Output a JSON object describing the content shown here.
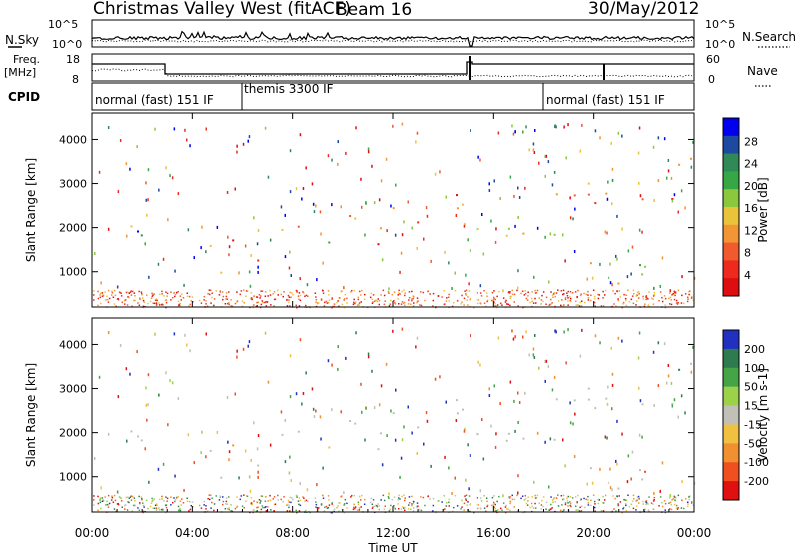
{
  "header": {
    "station": "Christmas Valley West (fitACF)",
    "beam": "Beam 16",
    "date": "30/May/2012"
  },
  "left_labels": {
    "nsky": "N.Sky",
    "freq_line1": "Freq.",
    "freq_line2": "[MHz]",
    "cpid": "CPID"
  },
  "right_labels": {
    "nsearch": "N.Search",
    "nave": "Nave"
  },
  "noise_panel": {
    "left_ticks": [
      "10^5",
      "10^0"
    ],
    "right_ticks": [
      "10^5",
      "10^0"
    ]
  },
  "freq_panel": {
    "left_ticks": [
      "18",
      "8"
    ],
    "right_ticks": [
      "60",
      "0"
    ]
  },
  "cpid_segments": [
    {
      "label": "normal (fast) 151 IF",
      "start": 0,
      "end": 6
    },
    {
      "label": "themis 3300 IF",
      "start": 6,
      "end": 18
    },
    {
      "label": "normal (fast) 151 IF",
      "start": 18,
      "end": 24
    }
  ],
  "chart_data": [
    {
      "type": "heatmap",
      "name": "power",
      "ylabel": "Slant Range [km]",
      "yticks": [
        1000,
        2000,
        3000,
        4000
      ],
      "ylim": [
        200,
        4600
      ],
      "colorbar_label": "Power [dB]",
      "colorbar_ticks": [
        "4",
        "8",
        "12",
        "16",
        "20",
        "24",
        "28"
      ],
      "colorbar_colors": [
        "#0000ee",
        "#1d4aa0",
        "#2f8a58",
        "#35a845",
        "#8cc83e",
        "#e9c33a",
        "#f29535",
        "#f05a2d",
        "#ee2a1f",
        "#dd0e10"
      ]
    },
    {
      "type": "heatmap",
      "name": "velocity",
      "ylabel": "Slant Range [km]",
      "xlabel": "Time UT",
      "yticks": [
        1000,
        2000,
        3000,
        4000
      ],
      "ylim": [
        200,
        4600
      ],
      "colorbar_label": "Velocity [m s-1]",
      "colorbar_ticks": [
        "200",
        "100",
        "50",
        "15",
        "-15",
        "-50",
        "-100",
        "-200"
      ],
      "colorbar_colors": [
        "#2030c0",
        "#2e7b4f",
        "#45a445",
        "#9cd24a",
        "#c0c0b8",
        "#f0c040",
        "#f09030",
        "#f05020",
        "#e01010"
      ]
    }
  ],
  "xaxis": {
    "label": "Time UT",
    "ticks": [
      "00:00",
      "04:00",
      "08:00",
      "12:00",
      "16:00",
      "20:00",
      "00:00"
    ],
    "range_hours": [
      0,
      24
    ]
  }
}
